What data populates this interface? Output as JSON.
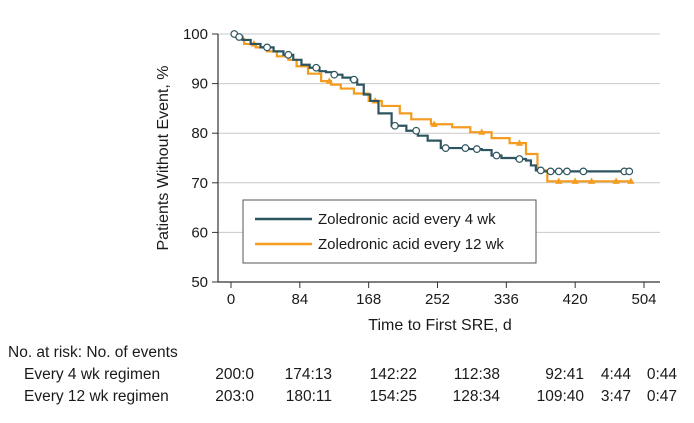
{
  "chart_data": {
    "type": "line",
    "subtype": "kaplan-meier step plot",
    "xlabel": "Time to First SRE, d",
    "ylabel": "Patients Without Event, %",
    "xlim": [
      0,
      504
    ],
    "ylim": [
      50,
      100
    ],
    "xticks": [
      0,
      84,
      168,
      252,
      336,
      420,
      504
    ],
    "yticks": [
      50,
      60,
      70,
      80,
      90,
      100
    ],
    "grid": "horizontal",
    "legend_position": "lower-left inside plot",
    "series": [
      {
        "name": "Zoledronic acid every 4 wk",
        "color": "#2d5560",
        "censor_marker": "circle",
        "x": [
          0,
          6,
          14,
          24,
          36,
          52,
          64,
          76,
          86,
          96,
          108,
          116,
          124,
          136,
          146,
          154,
          162,
          170,
          180,
          196,
          214,
          228,
          240,
          256,
          272,
          290,
          306,
          318,
          330,
          348,
          360,
          366,
          372,
          380,
          398,
          414,
          440,
          462,
          486
        ],
        "y": [
          100,
          99.4,
          98.8,
          98,
          97.3,
          96.5,
          95.8,
          94.8,
          93.8,
          93.2,
          92.5,
          92.3,
          91.8,
          91.2,
          90.8,
          89.8,
          87.8,
          86.5,
          84,
          81.5,
          80.5,
          79.5,
          78.5,
          77,
          77,
          76.8,
          76.6,
          75.5,
          75,
          74.8,
          74.5,
          73.5,
          72.5,
          72.3,
          72.3,
          72.3,
          72.3,
          72.3,
          72.3
        ],
        "censored_x": [
          4,
          10,
          44,
          70,
          104,
          126,
          150,
          200,
          226,
          262,
          286,
          300,
          324,
          352,
          378,
          390,
          400,
          410,
          430,
          480,
          486
        ]
      },
      {
        "name": "Zoledronic acid every 12 wk",
        "color": "#f39c1f",
        "censor_marker": "triangle",
        "x": [
          0,
          8,
          16,
          30,
          44,
          56,
          70,
          80,
          94,
          110,
          122,
          134,
          150,
          168,
          184,
          206,
          220,
          244,
          270,
          292,
          318,
          340,
          360,
          374,
          386,
          410,
          430,
          460,
          488
        ],
        "y": [
          100,
          99,
          98,
          97.3,
          96.5,
          95.5,
          94.8,
          93.5,
          92,
          90.5,
          89.8,
          89,
          88,
          86.5,
          85.5,
          84,
          82.8,
          81.8,
          81.2,
          80.2,
          79,
          78,
          75.8,
          72.5,
          70.3,
          70.3,
          70.3,
          70.3,
          70.3
        ],
        "censored_x": [
          28,
          120,
          176,
          248,
          306,
          352,
          400,
          420,
          440,
          470,
          488
        ]
      }
    ]
  },
  "risk_table": {
    "title": "No. at risk: No. of events",
    "rows": [
      {
        "label": "Every 4 wk regimen",
        "values": [
          "200:0",
          "174:13",
          "142:22",
          "112:38",
          "92:41",
          "4:44",
          "0:44"
        ]
      },
      {
        "label": "Every 12 wk regimen",
        "values": [
          "203:0",
          "180:11",
          "154:25",
          "128:34",
          "109:40",
          "3:47",
          "0:47"
        ]
      }
    ]
  }
}
